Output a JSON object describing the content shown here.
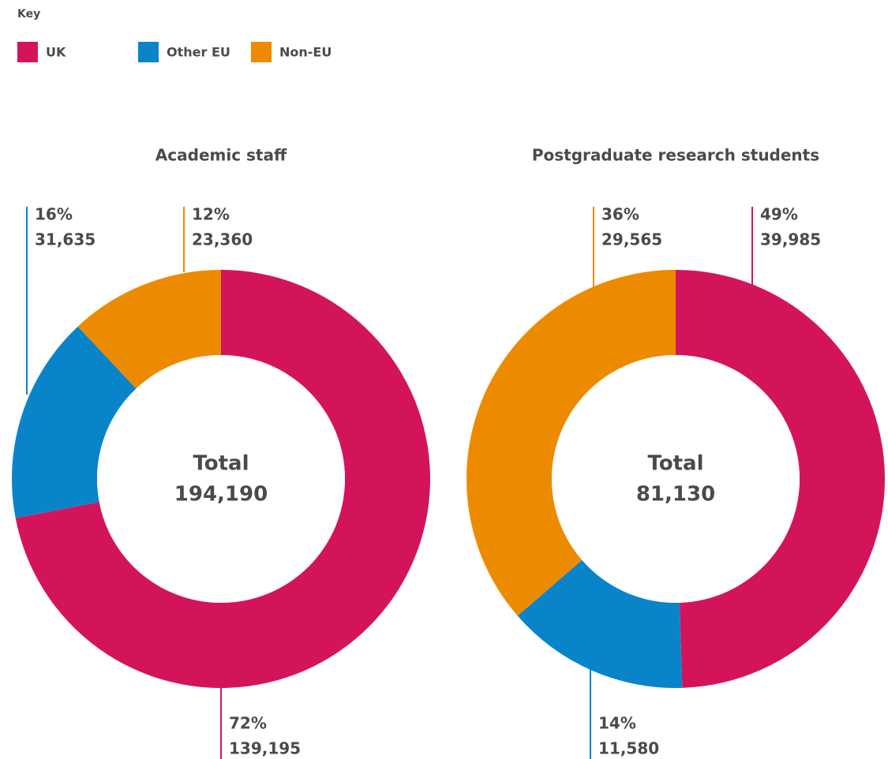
{
  "legend": {
    "title": "Key"
  },
  "chart_data": [
    {
      "type": "pie",
      "title": "Academic staff",
      "categories": [
        "UK",
        "Other EU",
        "Non-EU"
      ],
      "colors": [
        "#d4145a",
        "#0a84c9",
        "#ed8b00"
      ],
      "values": [
        72,
        16,
        12
      ],
      "value_labels": [
        "72%",
        "16%",
        "12%"
      ],
      "counts": [
        139195,
        31635,
        23360
      ],
      "count_labels": [
        "139,195",
        "31,635",
        "23,360"
      ],
      "center_label": "Total",
      "total": 194190,
      "total_label": "194,190"
    },
    {
      "type": "pie",
      "title": "Postgraduate research students",
      "categories": [
        "UK",
        "Other EU",
        "Non-EU"
      ],
      "colors": [
        "#d4145a",
        "#0a84c9",
        "#ed8b00"
      ],
      "values": [
        49,
        14,
        36
      ],
      "value_labels": [
        "49%",
        "14%",
        "36%"
      ],
      "counts": [
        39985,
        11580,
        29565
      ],
      "count_labels": [
        "39,985",
        "11,580",
        "29,565"
      ],
      "center_label": "Total",
      "total": 81130,
      "total_label": "81,130"
    }
  ]
}
